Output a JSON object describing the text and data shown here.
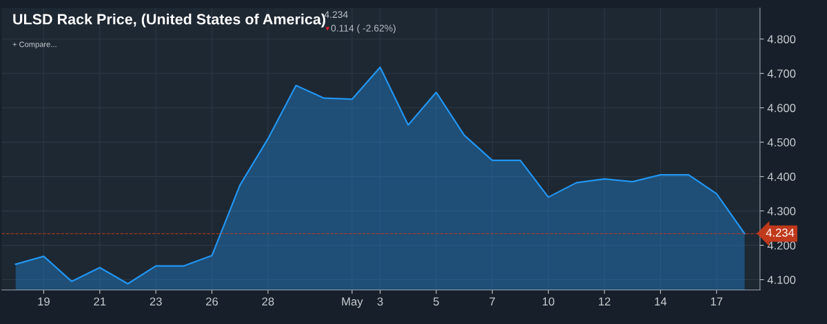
{
  "chart_data": {
    "type": "area",
    "title": "ULSD Rack Price, (United States of America)",
    "annotations": [
      "4.234",
      "▼",
      "0.114 ( -2.62%)",
      "+ Compare..."
    ],
    "categories": [
      null,
      "19",
      null,
      "21",
      null,
      "23",
      null,
      "26",
      null,
      "28",
      null,
      null,
      "May",
      "3",
      null,
      "5",
      null,
      "7",
      null,
      "10",
      null,
      "12",
      null,
      "14",
      null,
      "17",
      null
    ],
    "series": [
      {
        "color": "#2196f3",
        "values": [
          4.145,
          4.168,
          4.095,
          4.135,
          4.088,
          4.14,
          4.14,
          4.17,
          4.375,
          4.51,
          4.665,
          4.628,
          4.625,
          4.718,
          4.55,
          4.645,
          4.52,
          4.447,
          4.447,
          4.34,
          4.382,
          4.393,
          4.385,
          4.405,
          4.405,
          4.35,
          4.234
        ]
      }
    ],
    "ylim": [
      4.07,
      4.89
    ],
    "yticks": [
      {
        "value": 4.1,
        "label": "4.100"
      },
      {
        "value": 4.2,
        "label": "4.200"
      },
      {
        "value": 4.3,
        "label": "4.300"
      },
      {
        "value": 4.4,
        "label": "4.400"
      },
      {
        "value": 4.5,
        "label": "4.500"
      },
      {
        "value": 4.6,
        "label": "4.600"
      },
      {
        "value": 4.7,
        "label": "4.700"
      },
      {
        "value": 4.8,
        "label": "4.800"
      }
    ],
    "ref_lines": [
      {
        "axis": "y",
        "value": 4.234,
        "label": "4.234",
        "color": "#c0391b",
        "line_style": "dashed"
      }
    ],
    "grid": true,
    "marker": "none",
    "line_style": "solid"
  }
}
